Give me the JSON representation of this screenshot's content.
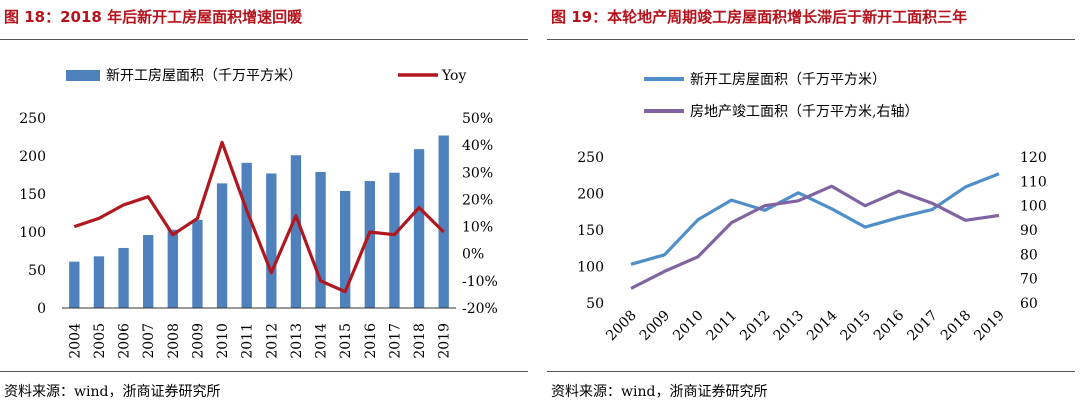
{
  "left": {
    "figure_title": "图 18：2018 年后新开工房屋面积增速回暖",
    "source": "资料来源：wind，浙商证券研究所"
  },
  "right": {
    "figure_title": "图 19：本轮地产周期竣工房屋面积增长滞后于新开工面积三年",
    "source": "资料来源：wind，浙商证券研究所"
  },
  "colors": {
    "title_red": "#b5121b",
    "bar_blue": "#4f81bd",
    "yoy_red": "#b0171f",
    "line_blue": "#4f8fc9",
    "line_purple": "#8064a2"
  },
  "chart_data": [
    {
      "type": "bar",
      "title": "图 18：2018 年后新开工房屋面积增速回暖",
      "categories": [
        "2004",
        "2005",
        "2006",
        "2007",
        "2008",
        "2009",
        "2010",
        "2011",
        "2012",
        "2013",
        "2014",
        "2015",
        "2016",
        "2017",
        "2018",
        "2019"
      ],
      "series": [
        {
          "name": "新开工房屋面积（千万平方米）",
          "type": "bar",
          "axis": "left",
          "values": [
            61,
            68,
            79,
            96,
            103,
            116,
            164,
            191,
            177,
            201,
            179,
            154,
            167,
            178,
            209,
            227
          ]
        },
        {
          "name": "Yoy",
          "type": "line",
          "axis": "right",
          "values": [
            10,
            13,
            18,
            21,
            7,
            13,
            41,
            16,
            -7,
            14,
            -10,
            -14,
            8,
            7,
            17,
            8
          ]
        }
      ],
      "ylim": [
        0,
        250
      ],
      "yticks": [
        0,
        50,
        100,
        150,
        200,
        250
      ],
      "y2lim": [
        -20,
        50
      ],
      "y2ticks": [
        "-20%",
        "-10%",
        "0%",
        "10%",
        "20%",
        "30%",
        "40%",
        "50%"
      ],
      "legend": "top"
    },
    {
      "type": "line",
      "title": "图 19：本轮地产周期竣工房屋面积增长滞后于新开工面积三年",
      "categories": [
        "2008",
        "2009",
        "2010",
        "2011",
        "2012",
        "2013",
        "2014",
        "2015",
        "2016",
        "2017",
        "2018",
        "2019"
      ],
      "series": [
        {
          "name": "新开工房屋面积（千万平方米）",
          "axis": "left",
          "values": [
            103,
            116,
            164,
            191,
            177,
            201,
            179,
            154,
            167,
            178,
            209,
            227
          ]
        },
        {
          "name": "房地产竣工面积（千万平方米,右轴）",
          "axis": "right",
          "values": [
            66,
            73,
            79,
            93,
            100,
            102,
            108,
            100,
            106,
            101,
            94,
            96
          ]
        }
      ],
      "ylim": [
        50,
        250
      ],
      "yticks": [
        50,
        100,
        150,
        200,
        250
      ],
      "y2lim": [
        60,
        120
      ],
      "y2ticks": [
        60,
        70,
        80,
        90,
        100,
        110,
        120
      ],
      "legend": "top"
    }
  ]
}
